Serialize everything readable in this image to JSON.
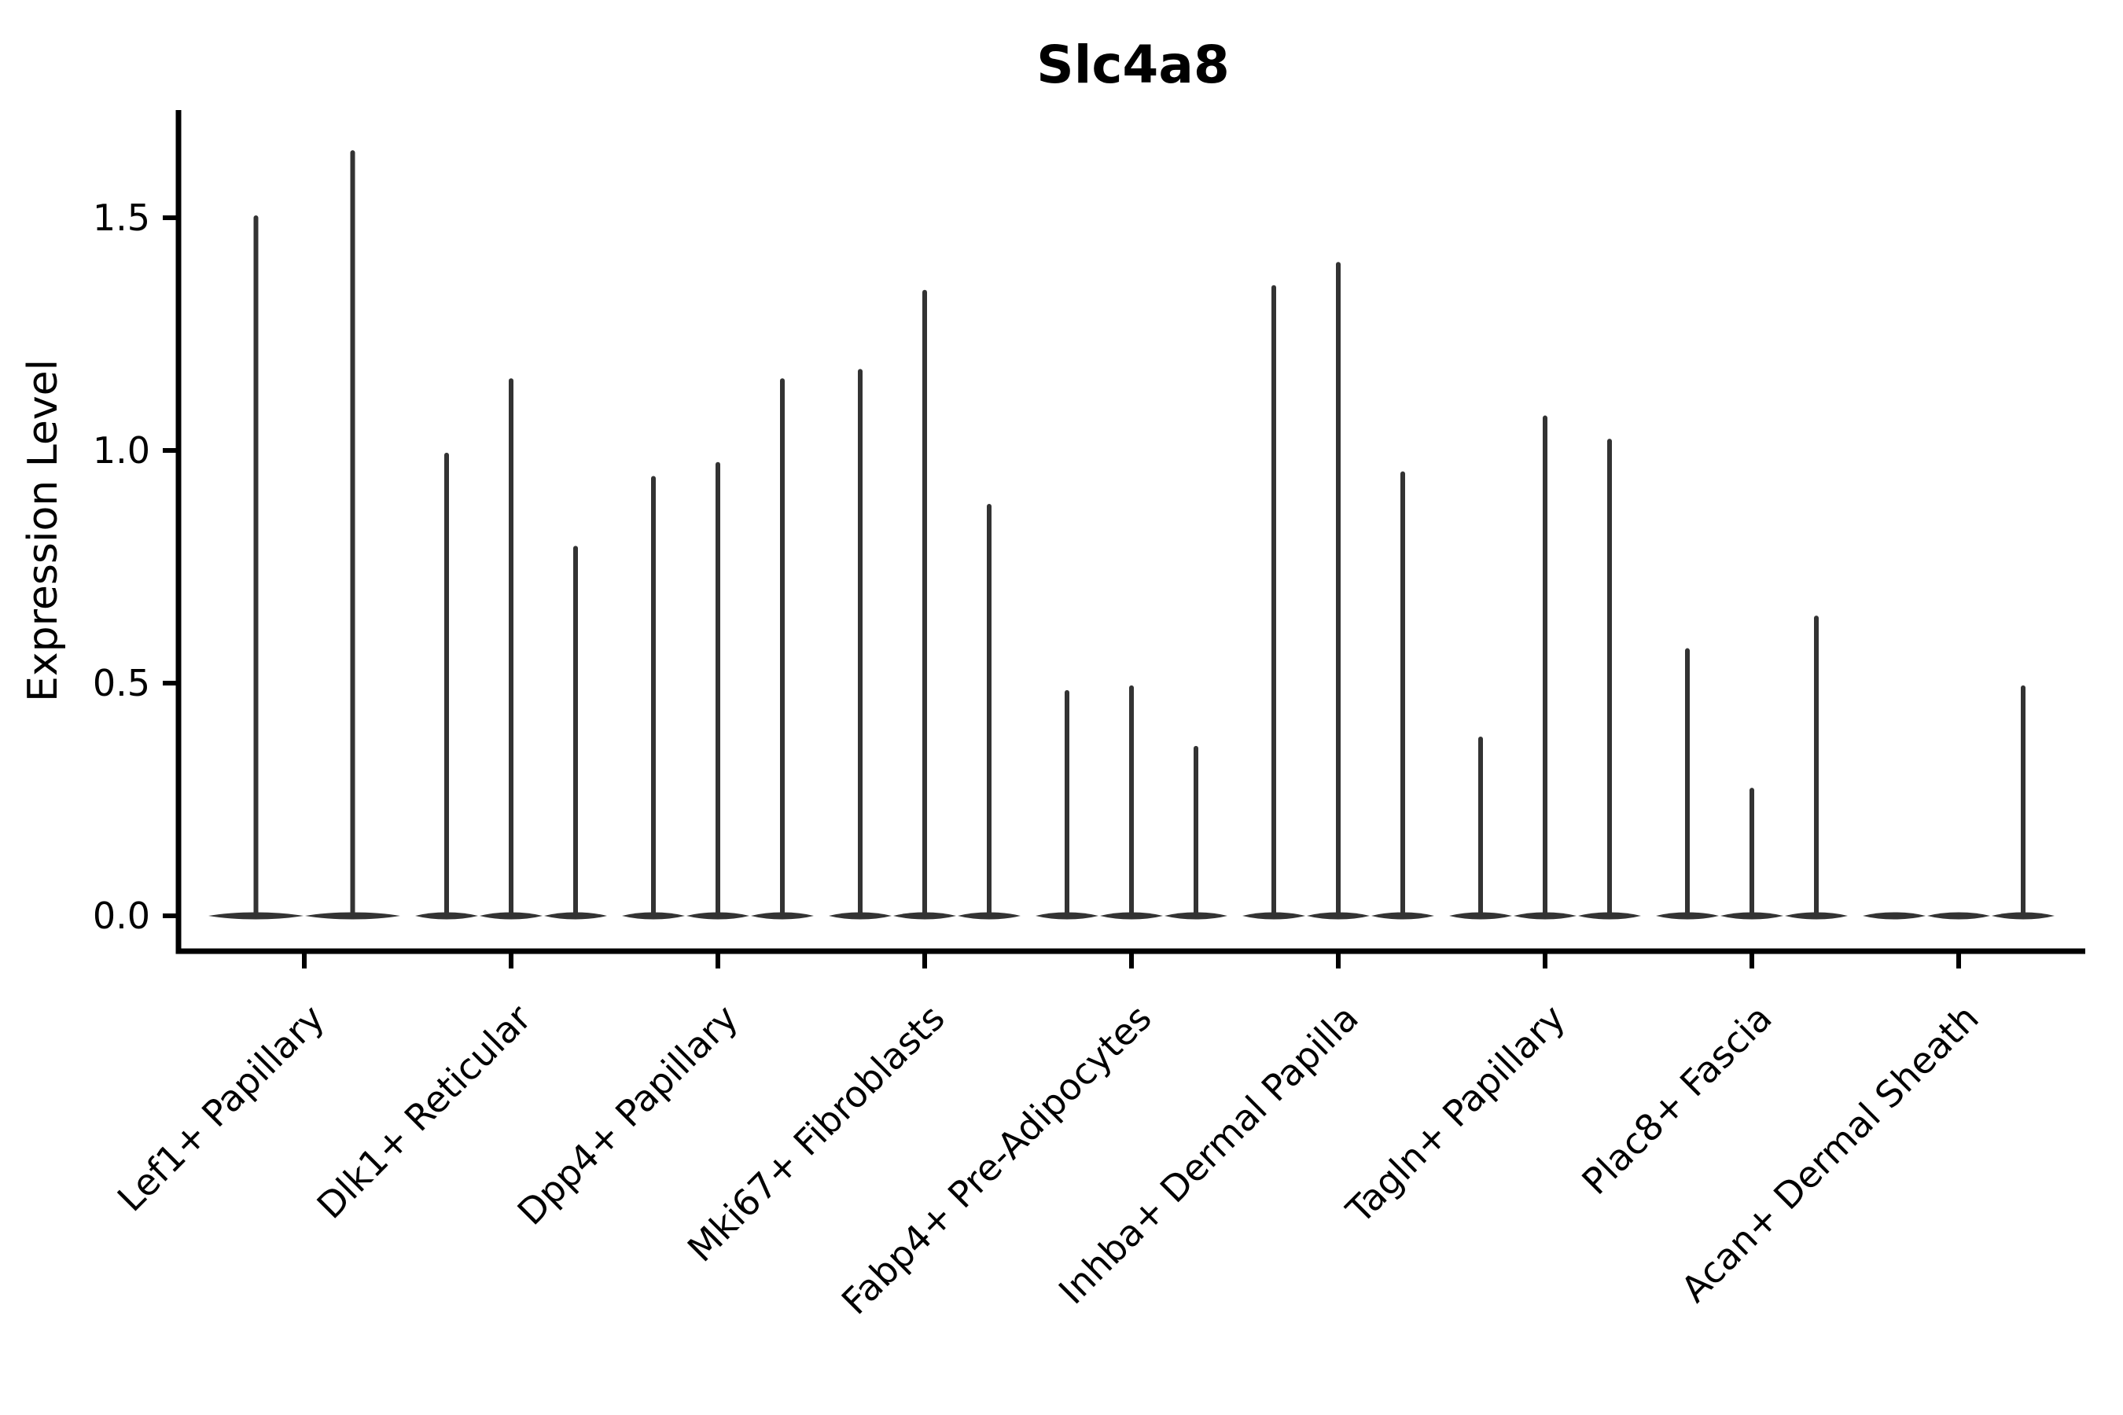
{
  "chart_data": {
    "type": "violin",
    "title": "Slc4a8",
    "ylabel": "Expression Level",
    "xlabel": "",
    "yticks": [
      0.0,
      0.5,
      1.0,
      1.5
    ],
    "ytick_labels": [
      "0.0",
      "0.5",
      "1.0",
      "1.5"
    ],
    "ylim": [
      -0.08,
      1.73
    ],
    "grid": false,
    "legend": "none",
    "categories": [
      "Lef1+ Papillary",
      "Dlk1+ Reticular",
      "Dpp4+ Papillary",
      "Mki67+ Fibroblasts",
      "Fabp4+ Pre-Adipocytes",
      "Inhba+ Dermal Papilla",
      "Tagln+ Papillary",
      "Plac8+ Fascia",
      "Acan+ Dermal Sheath"
    ],
    "groups": [
      {
        "category": "Lef1+ Papillary",
        "violin_max_values": [
          1.5,
          1.64
        ]
      },
      {
        "category": "Dlk1+ Reticular",
        "violin_max_values": [
          0.99,
          1.15,
          0.79
        ]
      },
      {
        "category": "Dpp4+ Papillary",
        "violin_max_values": [
          0.94,
          0.97,
          1.15
        ]
      },
      {
        "category": "Mki67+ Fibroblasts",
        "violin_max_values": [
          1.17,
          1.34,
          0.88
        ]
      },
      {
        "category": "Fabp4+ Pre-Adipocytes",
        "violin_max_values": [
          0.48,
          0.49,
          0.36
        ]
      },
      {
        "category": "Inhba+ Dermal Papilla",
        "violin_max_values": [
          1.35,
          1.4,
          0.95
        ]
      },
      {
        "category": "Tagln+ Papillary",
        "violin_max_values": [
          0.38,
          1.07,
          1.02
        ]
      },
      {
        "category": "Plac8+ Fascia",
        "violin_max_values": [
          0.57,
          0.27,
          0.64
        ]
      },
      {
        "category": "Acan+ Dermal Sheath",
        "violin_max_values": [
          0.0,
          0.0,
          0.49
        ]
      }
    ],
    "colors": {
      "violin": "#333333",
      "axis": "#000000",
      "text": "#000000",
      "background": "#ffffff"
    }
  }
}
